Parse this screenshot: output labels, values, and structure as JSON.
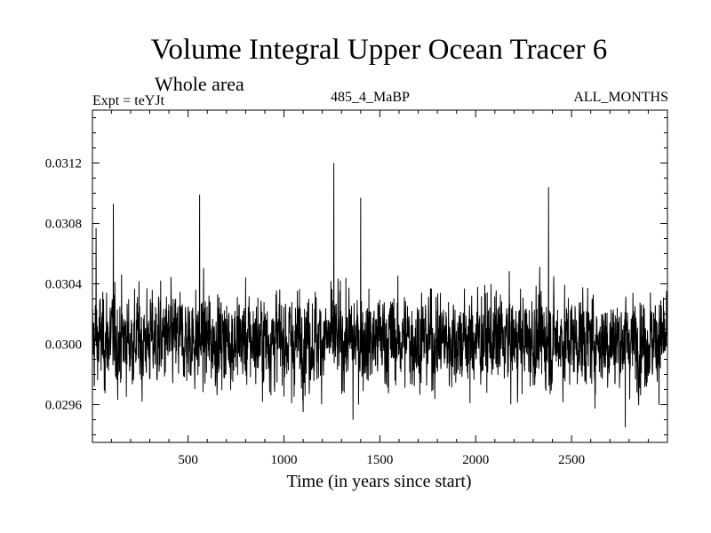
{
  "chart_data": {
    "type": "line",
    "title": "Volume Integral Upper Ocean Tracer 6",
    "subtitle": "Whole area",
    "experiment_label": "Expt = teYJt",
    "center_label": "485_4_MaBP",
    "right_label": "ALL_MONTHS",
    "xlabel": "Time (in years since start)",
    "ylabel": "",
    "xlim": [
      1,
      3000
    ],
    "ylim": [
      0.02935,
      0.03155
    ],
    "x_ticks": [
      500,
      1000,
      1500,
      2000,
      2500
    ],
    "x_tick_labels": [
      "500",
      "1000",
      "1500",
      "2000",
      "2500"
    ],
    "y_ticks": [
      0.0296,
      0.03,
      0.0304,
      0.0308,
      0.0312
    ],
    "y_tick_labels": [
      "0.0296",
      "0.0300",
      "0.0304",
      "0.0308",
      "0.0312"
    ],
    "grid": false,
    "series": [
      {
        "color": "#000000",
        "x_start": 1,
        "x_step": 1,
        "count": 3000,
        "baseline": 0.03003,
        "noise_sd": 0.00015,
        "peaks": [
          {
            "x": 20,
            "y": 0.03077
          },
          {
            "x": 110,
            "y": 0.03093
          },
          {
            "x": 560,
            "y": 0.03099
          },
          {
            "x": 1260,
            "y": 0.0312
          },
          {
            "x": 1400,
            "y": 0.03097
          },
          {
            "x": 2380,
            "y": 0.03104
          },
          {
            "x": 1360,
            "y": 0.0295
          },
          {
            "x": 2780,
            "y": 0.02945
          },
          {
            "x": 260,
            "y": 0.02962
          },
          {
            "x": 1040,
            "y": 0.02961
          },
          {
            "x": 1970,
            "y": 0.02961
          }
        ]
      }
    ]
  }
}
